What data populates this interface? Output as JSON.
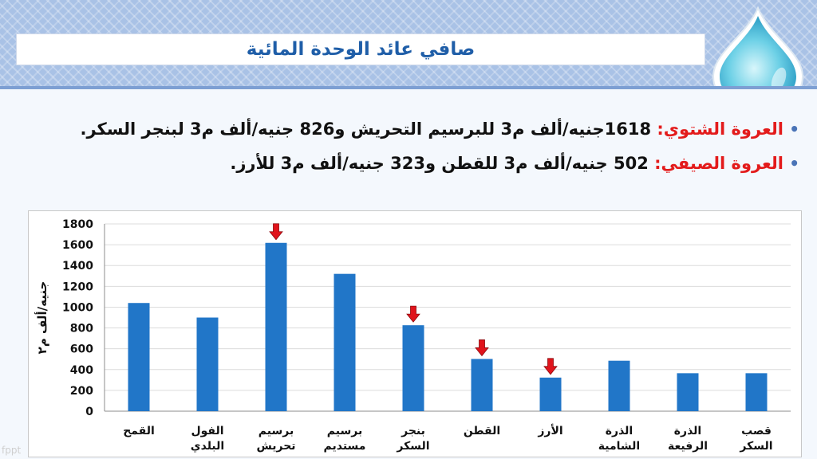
{
  "slide": {
    "title": "صافي عائد الوحدة المائية",
    "footer": "fppt",
    "bullets": [
      {
        "label": "العروة الشتوي:",
        "text": " 1618جنيه/ألف م3 للبرسيم التحريش و826 جنيه/ألف م3 لبنجر السكر."
      },
      {
        "label": "العروة الصيفي:",
        "text": " 502 جنيه/ألف م3 للقطن و323 جنيه/ألف م3 للأرز."
      }
    ]
  },
  "colors": {
    "bar": "#2176c8",
    "arrow": "#e0141c",
    "title": "#1f5ea8",
    "label": "#e31b1b"
  },
  "chart_data": {
    "type": "bar",
    "ylabel": "جنيه/ألف م٢",
    "ylim": [
      0,
      1800
    ],
    "yticks": [
      0,
      200,
      400,
      600,
      800,
      1000,
      1200,
      1400,
      1600,
      1800
    ],
    "grid": true,
    "categories": [
      [
        "القمح"
      ],
      [
        "الفول",
        "البلدي"
      ],
      [
        "برسيم",
        "تحريش"
      ],
      [
        "برسيم",
        "مستديم"
      ],
      [
        "بنجر",
        "السكر"
      ],
      [
        "القطن"
      ],
      [
        "الأرز"
      ],
      [
        "الذرة",
        "الشامية"
      ],
      [
        "الذرة",
        "الرفيعة"
      ],
      [
        "قصب",
        "السكر"
      ]
    ],
    "values": [
      1040,
      900,
      1618,
      1320,
      826,
      502,
      323,
      485,
      365,
      365
    ],
    "highlighted": [
      false,
      false,
      true,
      false,
      true,
      true,
      true,
      false,
      false,
      false
    ]
  }
}
